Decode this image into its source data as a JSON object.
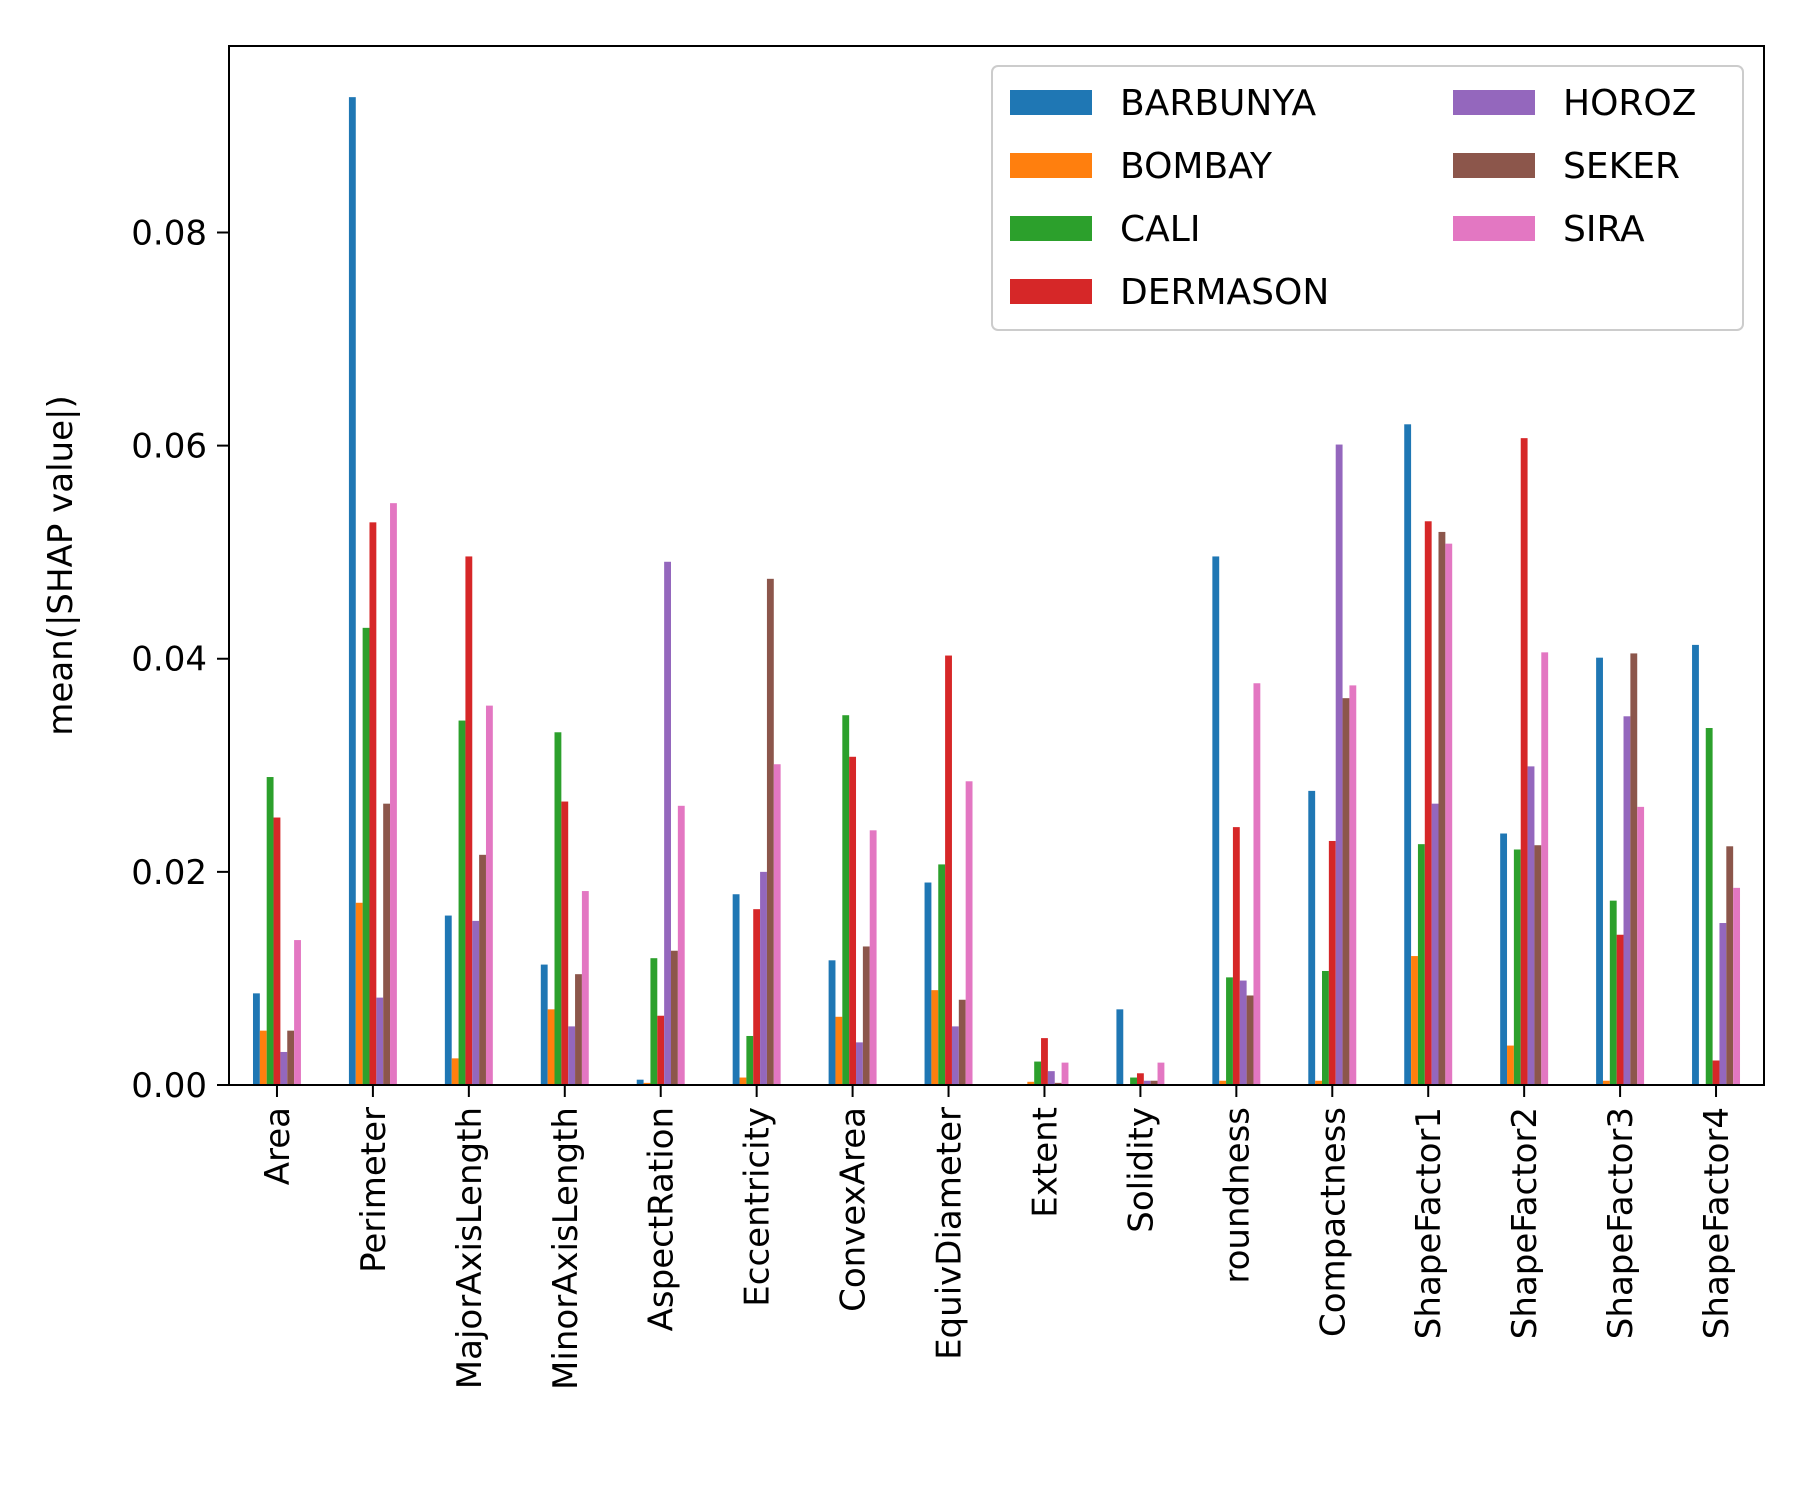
{
  "chart_data": {
    "type": "bar",
    "title": "",
    "xlabel": "",
    "ylabel": "mean(|SHAP value|)",
    "ylim": [
      0,
      0.0975
    ],
    "yticks": [
      0.0,
      0.02,
      0.04,
      0.06,
      0.08
    ],
    "ytick_labels": [
      "0.00",
      "0.02",
      "0.04",
      "0.06",
      "0.08"
    ],
    "grid": false,
    "legend": {
      "placement": "top-right",
      "columns": 2
    },
    "categories": [
      "Area",
      "Perimeter",
      "MajorAxisLength",
      "MinorAxisLength",
      "AspectRation",
      "Eccentricity",
      "ConvexArea",
      "EquivDiameter",
      "Extent",
      "Solidity",
      "roundness",
      "Compactness",
      "ShapeFactor1",
      "ShapeFactor2",
      "ShapeFactor3",
      "ShapeFactor4"
    ],
    "series": [
      {
        "name": "BARBUNYA",
        "color": "#1f77b4",
        "values": [
          0.0086,
          0.0927,
          0.0159,
          0.0113,
          0.0005,
          0.0179,
          0.0117,
          0.019,
          0.0,
          0.0071,
          0.0496,
          0.0276,
          0.062,
          0.0236,
          0.0401,
          0.0413
        ]
      },
      {
        "name": "BOMBAY",
        "color": "#ff7f0e",
        "values": [
          0.0051,
          0.0171,
          0.0025,
          0.0071,
          0.0002,
          0.0007,
          0.0064,
          0.0089,
          0.0003,
          0.0,
          0.0004,
          0.0004,
          0.0121,
          0.0037,
          0.0004,
          0.0
        ]
      },
      {
        "name": "CALI",
        "color": "#2ca02c",
        "values": [
          0.0289,
          0.0429,
          0.0342,
          0.0331,
          0.0119,
          0.0046,
          0.0347,
          0.0207,
          0.0022,
          0.0007,
          0.0101,
          0.0107,
          0.0226,
          0.0221,
          0.0173,
          0.0335
        ]
      },
      {
        "name": "DERMASON",
        "color": "#d62728",
        "values": [
          0.0251,
          0.0528,
          0.0496,
          0.0266,
          0.0065,
          0.0165,
          0.0308,
          0.0403,
          0.0044,
          0.0011,
          0.0242,
          0.0229,
          0.0529,
          0.0607,
          0.0141,
          0.0023
        ]
      },
      {
        "name": "HOROZ",
        "color": "#9467bd",
        "values": [
          0.0031,
          0.0082,
          0.0154,
          0.0055,
          0.0491,
          0.02,
          0.004,
          0.0055,
          0.0013,
          0.0004,
          0.0098,
          0.0601,
          0.0264,
          0.0299,
          0.0346,
          0.0152
        ]
      },
      {
        "name": "SEKER",
        "color": "#8c564b",
        "values": [
          0.0051,
          0.0264,
          0.0216,
          0.0104,
          0.0126,
          0.0475,
          0.013,
          0.008,
          0.0002,
          0.0004,
          0.0084,
          0.0363,
          0.0519,
          0.0225,
          0.0405,
          0.0224
        ]
      },
      {
        "name": "SIRA",
        "color": "#e377c2",
        "values": [
          0.0136,
          0.0546,
          0.0356,
          0.0182,
          0.0262,
          0.0301,
          0.0239,
          0.0285,
          0.0021,
          0.0021,
          0.0377,
          0.0375,
          0.0508,
          0.0406,
          0.0261,
          0.0185
        ]
      }
    ]
  }
}
